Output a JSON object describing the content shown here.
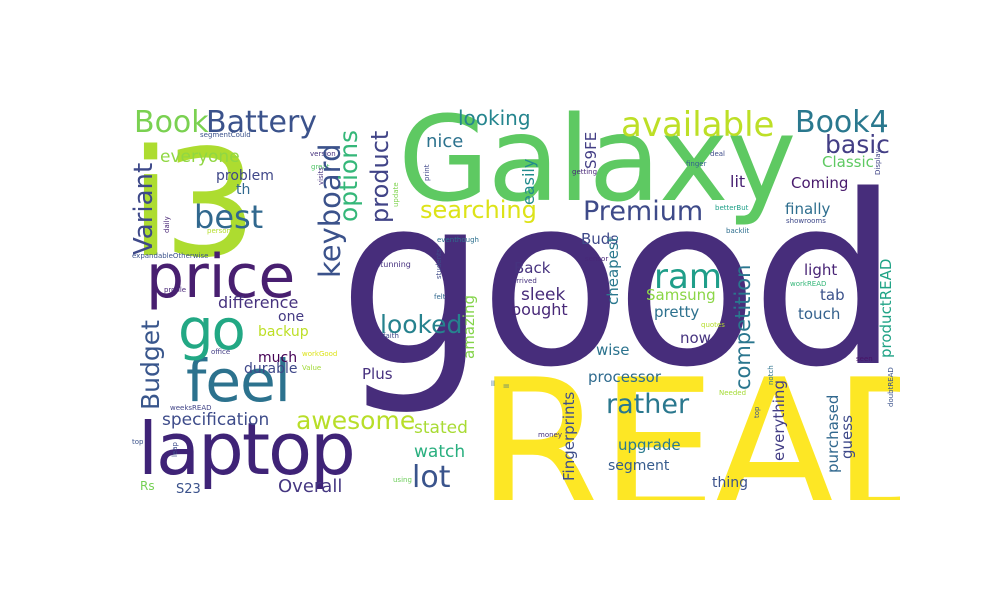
{
  "words": [
    {
      "text": "good",
      "color": "#472d7b"
    },
    {
      "text": "READ",
      "color": "#fde725"
    },
    {
      "text": "Galaxy",
      "color": "#5ec962"
    },
    {
      "text": "i3",
      "color": "#addc30"
    },
    {
      "text": "laptop",
      "color": "#3f2377"
    },
    {
      "text": "price",
      "color": "#481f70"
    },
    {
      "text": "feel",
      "color": "#2c728e"
    },
    {
      "text": "go",
      "color": "#22a884"
    },
    {
      "text": "Battery",
      "color": "#3b528b"
    },
    {
      "text": "Book",
      "color": "#7ad151"
    },
    {
      "text": "available",
      "color": "#bddf26"
    },
    {
      "text": "Book4",
      "color": "#2a788e"
    },
    {
      "text": "best",
      "color": "#31688e"
    },
    {
      "text": "keyboard",
      "color": "#3b528b"
    },
    {
      "text": "options",
      "color": "#35b779"
    },
    {
      "text": "product",
      "color": "#414487"
    },
    {
      "text": "searching",
      "color": "#dde318"
    },
    {
      "text": "Premium",
      "color": "#3e4a89"
    },
    {
      "text": "ram",
      "color": "#1f9e89"
    },
    {
      "text": "looked",
      "color": "#26828e"
    },
    {
      "text": "awesome",
      "color": "#b8de29"
    },
    {
      "text": "lot",
      "color": "#3a548c"
    },
    {
      "text": "rather",
      "color": "#2a788e"
    },
    {
      "text": "basic",
      "color": "#433e85"
    },
    {
      "text": "looking",
      "color": "#25858e"
    },
    {
      "text": "nice",
      "color": "#2c728e"
    },
    {
      "text": "Variant",
      "color": "#3e4989"
    },
    {
      "text": "everyone",
      "color": "#90d743"
    },
    {
      "text": "Budget",
      "color": "#39568c"
    },
    {
      "text": "competition",
      "color": "#2a768e"
    },
    {
      "text": "Overall",
      "color": "#453781"
    },
    {
      "text": "specification",
      "color": "#3e4c8a"
    },
    {
      "text": "stated",
      "color": "#a8db34"
    },
    {
      "text": "watch",
      "color": "#29af7f"
    },
    {
      "text": "difference",
      "color": "#46327e"
    },
    {
      "text": "problem",
      "color": "#3f4788"
    },
    {
      "text": "Classic",
      "color": "#5ec962"
    },
    {
      "text": "Coming",
      "color": "#481a6c"
    },
    {
      "text": "finally",
      "color": "#2e6e8e"
    },
    {
      "text": "lit",
      "color": "#482173"
    },
    {
      "text": "easily",
      "color": "#228c8d"
    },
    {
      "text": "S9FE",
      "color": "#433e85"
    },
    {
      "text": "Buds",
      "color": "#3e4989"
    },
    {
      "text": "cheapest",
      "color": "#2a788e"
    },
    {
      "text": "amazing",
      "color": "#84d44b"
    },
    {
      "text": "Back",
      "color": "#46327e"
    },
    {
      "text": "sleek",
      "color": "#472c7a"
    },
    {
      "text": "bought",
      "color": "#482878"
    },
    {
      "text": "Samsung",
      "color": "#8bd646"
    },
    {
      "text": "pretty",
      "color": "#2d718e"
    },
    {
      "text": "light",
      "color": "#482475"
    },
    {
      "text": "tab",
      "color": "#3b528b"
    },
    {
      "text": "touch",
      "color": "#34618d"
    },
    {
      "text": "productREAD",
      "color": "#20a386"
    },
    {
      "text": "processor",
      "color": "#2f6b8e"
    },
    {
      "text": "now",
      "color": "#46337f"
    },
    {
      "text": "wise",
      "color": "#2c738e"
    },
    {
      "text": "Fingerprints",
      "color": "#3d4d8a"
    },
    {
      "text": "segment",
      "color": "#365c8d"
    },
    {
      "text": "upgrade",
      "color": "#2a7b8e"
    },
    {
      "text": "purchased",
      "color": "#31688e"
    },
    {
      "text": "guess",
      "color": "#3e4989"
    },
    {
      "text": "everything",
      "color": "#433e85"
    },
    {
      "text": "thing",
      "color": "#3b528b"
    },
    {
      "text": "Plus",
      "color": "#46307e"
    },
    {
      "text": "durable",
      "color": "#3f4889"
    },
    {
      "text": "much",
      "color": "#440154"
    },
    {
      "text": "backup",
      "color": "#bddf26"
    },
    {
      "text": "one",
      "color": "#443a83"
    },
    {
      "text": "th",
      "color": "#31688e"
    },
    {
      "text": "Rs",
      "color": "#75d054"
    },
    {
      "text": "S23",
      "color": "#3b528b"
    },
    {
      "text": "segmentCould",
      "color": "#3b528b"
    },
    {
      "text": "version",
      "color": "#46327e"
    },
    {
      "text": "visits",
      "color": "#46337f"
    },
    {
      "text": "great",
      "color": "#52c569"
    },
    {
      "text": "update",
      "color": "#7fd34e"
    },
    {
      "text": "print",
      "color": "#3f4788"
    },
    {
      "text": "deal",
      "color": "#3e4c8a"
    },
    {
      "text": "finger",
      "color": "#33638d"
    },
    {
      "text": "Display",
      "color": "#414487"
    },
    {
      "text": "getting",
      "color": "#482878"
    },
    {
      "text": "betterBut",
      "color": "#1fa088"
    },
    {
      "text": "showrooms",
      "color": "#3e4989"
    },
    {
      "text": "backlit",
      "color": "#2e6e8e"
    },
    {
      "text": "daily",
      "color": "#482576"
    },
    {
      "text": "person",
      "color": "#b5de2b"
    },
    {
      "text": "expandableOtherwise",
      "color": "#3b528b"
    },
    {
      "text": "eventhough",
      "color": "#2d708e"
    },
    {
      "text": "stunning",
      "color": "#46307e"
    },
    {
      "text": "students",
      "color": "#3e4a89"
    },
    {
      "text": "sensor",
      "color": "#482878"
    },
    {
      "text": "arrived",
      "color": "#46327e"
    },
    {
      "text": "felt",
      "color": "#31688e"
    },
    {
      "text": "workREAD",
      "color": "#35b779"
    },
    {
      "text": "profile",
      "color": "#482677"
    },
    {
      "text": "quotes",
      "color": "#b5de2b"
    },
    {
      "text": "office",
      "color": "#433e85"
    },
    {
      "text": "workGood",
      "color": "#dde318"
    },
    {
      "text": "faith",
      "color": "#3e4989"
    },
    {
      "text": "notch",
      "color": "#2c728e"
    },
    {
      "text": "seen",
      "color": "#481467"
    },
    {
      "text": "Value",
      "color": "#a2da37"
    },
    {
      "text": "doubtREAD",
      "color": "#3b528b"
    },
    {
      "text": "ll",
      "color": "#31688e"
    },
    {
      "text": "Needed",
      "color": "#a5db36"
    },
    {
      "text": "weeksREAD",
      "color": "#414487"
    },
    {
      "text": "slim",
      "color": "#481f70"
    },
    {
      "text": "top",
      "color": "#3b528b"
    },
    {
      "text": "leap",
      "color": "#3e4c8a"
    },
    {
      "text": "money",
      "color": "#46337f"
    },
    {
      "text": "using",
      "color": "#6ccd5a"
    },
    {
      "text": "took",
      "color": "#bddf26"
    }
  ]
}
